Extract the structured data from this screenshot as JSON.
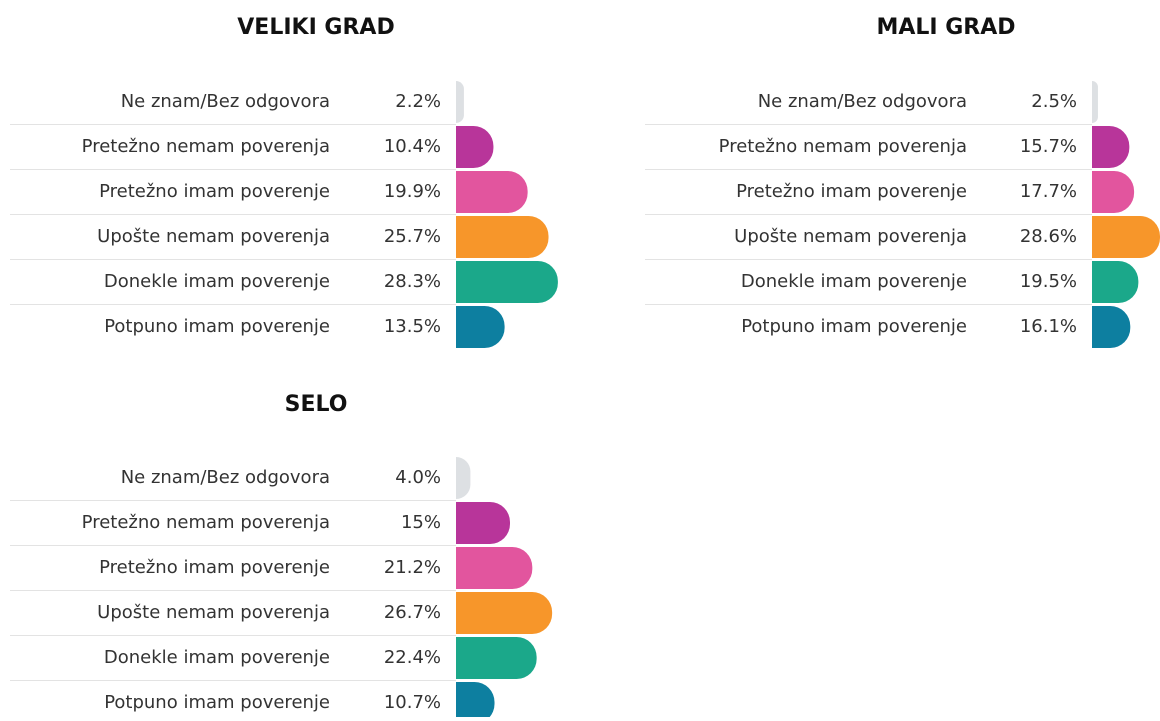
{
  "chart_data": [
    {
      "type": "bar",
      "orientation": "horizontal",
      "title": "VELIKI GRAD",
      "categories": [
        "Ne znam/Bez odgovora",
        "Pretežno nemam poverenja",
        "Pretežno imam poverenje",
        "Upošte nemam poverenja",
        "Donekle imam poverenje",
        "Potpuno imam poverenje"
      ],
      "values": [
        2.2,
        10.4,
        19.9,
        25.7,
        28.3,
        13.5
      ],
      "value_labels": [
        "2.2%",
        "10.4%",
        "19.9%",
        "25.7%",
        "28.3%",
        "13.5%"
      ],
      "colors": [
        "#dde0e3",
        "#b8359a",
        "#e2559e",
        "#f7962a",
        "#1ba88a",
        "#0d7fa0"
      ]
    },
    {
      "type": "bar",
      "orientation": "horizontal",
      "title": "MALI GRAD",
      "categories": [
        "Ne znam/Bez odgovora",
        "Pretežno nemam poverenja",
        "Pretežno imam poverenje",
        "Upošte nemam poverenja",
        "Donekle imam poverenje",
        "Potpuno imam poverenje"
      ],
      "values": [
        2.5,
        15.7,
        17.7,
        28.6,
        19.5,
        16.1
      ],
      "value_labels": [
        "2.5%",
        "15.7%",
        "17.7%",
        "28.6%",
        "19.5%",
        "16.1%"
      ],
      "colors": [
        "#dde0e3",
        "#b8359a",
        "#e2559e",
        "#f7962a",
        "#1ba88a",
        "#0d7fa0"
      ]
    },
    {
      "type": "bar",
      "orientation": "horizontal",
      "title": "SELO",
      "categories": [
        "Ne znam/Bez odgovora",
        "Pretežno nemam poverenja",
        "Pretežno imam poverenje",
        "Upošte nemam poverenja",
        "Donekle imam poverenje",
        "Potpuno imam poverenje"
      ],
      "values": [
        4.0,
        15,
        21.2,
        26.7,
        22.4,
        10.7
      ],
      "value_labels": [
        "4.0%",
        "15%",
        "21.2%",
        "26.7%",
        "22.4%",
        "10.7%"
      ],
      "colors": [
        "#dde0e3",
        "#b8359a",
        "#e2559e",
        "#f7962a",
        "#1ba88a",
        "#0d7fa0"
      ]
    }
  ]
}
